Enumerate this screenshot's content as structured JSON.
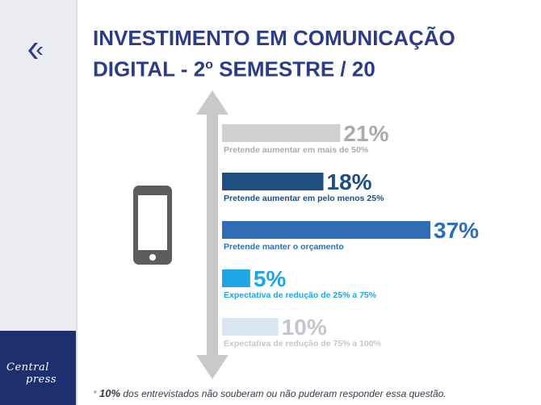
{
  "page": {
    "title_line1": "INVESTIMENTO EM COMUNICAÇÃO",
    "title_line2_main": "DIGITAL - 2",
    "title_line2_sup": "o",
    "title_line2_end": " SEMESTRE / 20"
  },
  "brand": {
    "line1": "Central",
    "line2": "press"
  },
  "icons": {
    "logo": "c-logo-icon",
    "phone": "smartphone-icon",
    "arrow": "vertical-double-arrow-icon"
  },
  "footnote": {
    "star": "*",
    "highlight": "10%",
    "text": " dos entrevistados não souberam ou não puderam responder essa questão."
  },
  "chart_data": {
    "type": "bar",
    "orientation": "horizontal",
    "categories": [
      "Pretende aumentar em mais de 50%",
      "Pretende aumentar em pelo menos 25%",
      "Pretende manter o orçamento",
      "Expectativa de redução de 25% a 75%",
      "Expectativa de redução de 75% a 100%"
    ],
    "values": [
      21,
      18,
      37,
      5,
      10
    ],
    "value_labels": [
      "21%",
      "18%",
      "37%",
      "5%",
      "10%"
    ],
    "colors": [
      "#cfd0d2",
      "#1d4f80",
      "#2f6db4",
      "#1ca6e6",
      "#dbe6f3"
    ],
    "label_colors": [
      "#a9abae",
      "#1d4f80",
      "#2f6db4",
      "#1ca6e6",
      "#c3c6ca"
    ],
    "category_colors": [
      "#a9abae",
      "#1d4f80",
      "#2f6db4",
      "#1ca6e6",
      "#c3c6ca"
    ],
    "xlim": [
      0,
      37
    ]
  }
}
